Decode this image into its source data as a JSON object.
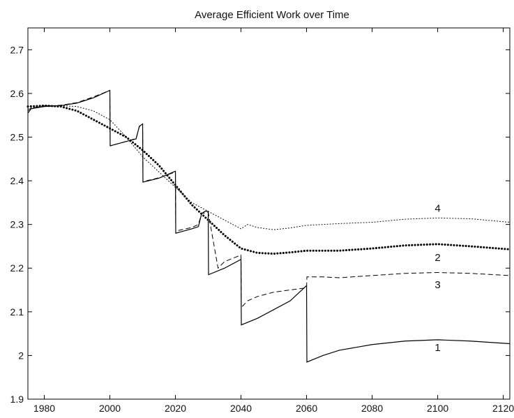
{
  "chart_data": {
    "type": "line",
    "title": "Average Efficient Work over Time",
    "xlabel": "",
    "ylabel": "",
    "xlim": [
      1975,
      2122
    ],
    "ylim": [
      1.9,
      2.75
    ],
    "xticks": [
      1980,
      2000,
      2020,
      2040,
      2060,
      2080,
      2100,
      2120
    ],
    "yticks": [
      1.9,
      2,
      2.1,
      2.2,
      2.3,
      2.4,
      2.5,
      2.6,
      2.7
    ],
    "grid": false,
    "series": [
      {
        "name": "1",
        "style": "solid",
        "points": [
          [
            1975,
            2.555
          ],
          [
            1976,
            2.565
          ],
          [
            1980,
            2.57
          ],
          [
            1985,
            2.572
          ],
          [
            1990,
            2.578
          ],
          [
            1995,
            2.59
          ],
          [
            2000,
            2.607
          ],
          [
            2000.1,
            2.48
          ],
          [
            2005,
            2.49
          ],
          [
            2008,
            2.496
          ],
          [
            2009,
            2.525
          ],
          [
            2010,
            2.53
          ],
          [
            2010.1,
            2.397
          ],
          [
            2015,
            2.406
          ],
          [
            2020,
            2.422
          ],
          [
            2020.1,
            2.28
          ],
          [
            2025,
            2.29
          ],
          [
            2027,
            2.295
          ],
          [
            2028,
            2.325
          ],
          [
            2029,
            2.33
          ],
          [
            2030,
            2.33
          ],
          [
            2030.1,
            2.185
          ],
          [
            2035,
            2.2
          ],
          [
            2040,
            2.22
          ],
          [
            2040.1,
            2.07
          ],
          [
            2045,
            2.085
          ],
          [
            2050,
            2.105
          ],
          [
            2055,
            2.125
          ],
          [
            2060,
            2.16
          ],
          [
            2060.1,
            1.985
          ],
          [
            2065,
            2.0
          ],
          [
            2070,
            2.012
          ],
          [
            2080,
            2.025
          ],
          [
            2090,
            2.033
          ],
          [
            2100,
            2.036
          ],
          [
            2110,
            2.033
          ],
          [
            2120,
            2.028
          ],
          [
            2122,
            2.027
          ]
        ]
      },
      {
        "name": "2",
        "style": "heavy-dotted",
        "points": [
          [
            1975,
            2.57
          ],
          [
            1980,
            2.572
          ],
          [
            1985,
            2.57
          ],
          [
            1990,
            2.56
          ],
          [
            1995,
            2.54
          ],
          [
            2000,
            2.52
          ],
          [
            2005,
            2.5
          ],
          [
            2010,
            2.47
          ],
          [
            2015,
            2.435
          ],
          [
            2020,
            2.39
          ],
          [
            2025,
            2.345
          ],
          [
            2030,
            2.31
          ],
          [
            2035,
            2.275
          ],
          [
            2040,
            2.245
          ],
          [
            2045,
            2.235
          ],
          [
            2050,
            2.233
          ],
          [
            2055,
            2.236
          ],
          [
            2060,
            2.24
          ],
          [
            2070,
            2.24
          ],
          [
            2080,
            2.245
          ],
          [
            2090,
            2.252
          ],
          [
            2100,
            2.255
          ],
          [
            2110,
            2.25
          ],
          [
            2122,
            2.243
          ]
        ]
      },
      {
        "name": "3",
        "style": "dashed",
        "points": [
          [
            1975,
            2.56
          ],
          [
            1976,
            2.567
          ],
          [
            1980,
            2.57
          ],
          [
            1985,
            2.573
          ],
          [
            1990,
            2.579
          ],
          [
            1995,
            2.592
          ],
          [
            2000,
            2.607
          ],
          [
            2000.1,
            2.48
          ],
          [
            2005,
            2.49
          ],
          [
            2008,
            2.497
          ],
          [
            2009,
            2.524
          ],
          [
            2010,
            2.53
          ],
          [
            2010.1,
            2.398
          ],
          [
            2015,
            2.407
          ],
          [
            2020,
            2.42
          ],
          [
            2020.1,
            2.285
          ],
          [
            2025,
            2.293
          ],
          [
            2027,
            2.3
          ],
          [
            2028,
            2.325
          ],
          [
            2030,
            2.328
          ],
          [
            2031,
            2.285
          ],
          [
            2033,
            2.2
          ],
          [
            2035,
            2.215
          ],
          [
            2040,
            2.23
          ],
          [
            2040.1,
            2.11
          ],
          [
            2042,
            2.125
          ],
          [
            2045,
            2.135
          ],
          [
            2050,
            2.145
          ],
          [
            2055,
            2.15
          ],
          [
            2060,
            2.155
          ],
          [
            2060.1,
            2.18
          ],
          [
            2065,
            2.18
          ],
          [
            2070,
            2.178
          ],
          [
            2080,
            2.183
          ],
          [
            2090,
            2.188
          ],
          [
            2100,
            2.19
          ],
          [
            2110,
            2.188
          ],
          [
            2122,
            2.183
          ]
        ]
      },
      {
        "name": "4",
        "style": "fine-dotted",
        "points": [
          [
            1975,
            2.565
          ],
          [
            1980,
            2.572
          ],
          [
            1985,
            2.572
          ],
          [
            1990,
            2.57
          ],
          [
            1995,
            2.56
          ],
          [
            2000,
            2.54
          ],
          [
            2005,
            2.5
          ],
          [
            2010,
            2.455
          ],
          [
            2015,
            2.42
          ],
          [
            2020,
            2.385
          ],
          [
            2025,
            2.35
          ],
          [
            2030,
            2.33
          ],
          [
            2035,
            2.31
          ],
          [
            2040,
            2.29
          ],
          [
            2042,
            2.3
          ],
          [
            2045,
            2.293
          ],
          [
            2050,
            2.288
          ],
          [
            2055,
            2.292
          ],
          [
            2060,
            2.298
          ],
          [
            2070,
            2.302
          ],
          [
            2080,
            2.305
          ],
          [
            2090,
            2.312
          ],
          [
            2100,
            2.315
          ],
          [
            2110,
            2.313
          ],
          [
            2122,
            2.305
          ]
        ]
      }
    ],
    "annotations": [
      {
        "text": "4",
        "x": 2100,
        "y": 2.337
      },
      {
        "text": "2",
        "x": 2100,
        "y": 2.224
      },
      {
        "text": "3",
        "x": 2100,
        "y": 2.162
      },
      {
        "text": "1",
        "x": 2100,
        "y": 2.018
      }
    ]
  }
}
